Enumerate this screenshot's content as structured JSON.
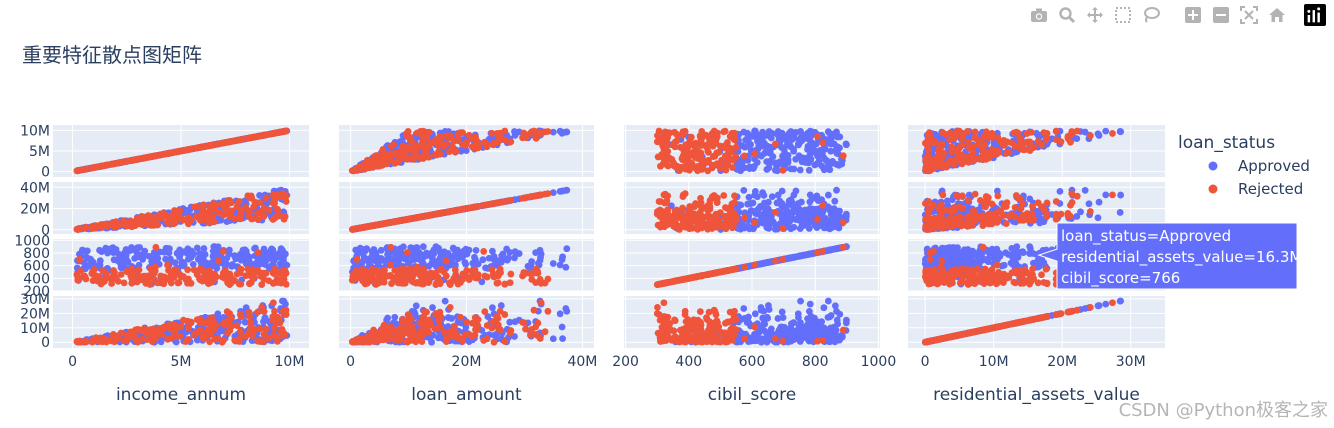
{
  "modebar": {
    "buttons": [
      {
        "name": "camera-icon",
        "title": "Download plot as a png"
      },
      {
        "name": "zoom-icon",
        "title": "Zoom"
      },
      {
        "name": "pan-icon",
        "title": "Pan"
      },
      {
        "name": "box-select-icon",
        "title": "Box Select"
      },
      {
        "name": "lasso-select-icon",
        "title": "Lasso Select"
      },
      {
        "name": "zoom-in-icon",
        "title": "Zoom in"
      },
      {
        "name": "zoom-out-icon",
        "title": "Zoom out"
      },
      {
        "name": "autoscale-icon",
        "title": "Autoscale"
      },
      {
        "name": "reset-axes-icon",
        "title": "Reset axes"
      },
      {
        "name": "plotly-logo-icon",
        "title": "Produced with Plotly"
      }
    ]
  },
  "watermark": "CSDN @Python极客之家",
  "chart_data": {
    "type": "scatter",
    "title": "重要特征散点图矩阵",
    "dimensions": [
      "income_annum",
      "loan_amount",
      "cibil_score",
      "residential_assets_value"
    ],
    "dimension_ticks": {
      "income_annum": {
        "range": [
          -900000,
          10900000
        ],
        "ticks": [
          0,
          5000000,
          10000000
        ],
        "labels": [
          "0",
          "5M",
          "10M"
        ]
      },
      "loan_amount": {
        "range": [
          -2000000,
          42000000
        ],
        "ticks": [
          0,
          20000000,
          40000000
        ],
        "labels": [
          "0",
          "20M",
          "40M"
        ]
      },
      "cibil_score": {
        "range": [
          195,
          1005
        ],
        "ticks": [
          200,
          400,
          600,
          800,
          1000
        ],
        "labels": [
          "200",
          "400",
          "600",
          "800",
          "1000"
        ]
      },
      "residential_assets_value": {
        "range": [
          -2500000,
          35000000
        ],
        "ticks": [
          0,
          10000000,
          20000000,
          30000000
        ],
        "labels": [
          "0",
          "10M",
          "20M",
          "30M"
        ]
      }
    },
    "row_ticks": {
      "income_annum": {
        "range": [
          -1300000,
          11300000
        ],
        "ticks": [
          0,
          5000000,
          10000000
        ],
        "labels": [
          "0",
          "5M",
          "10M"
        ]
      },
      "loan_amount": {
        "range": [
          -4000000,
          45000000
        ],
        "ticks": [
          0,
          20000000,
          40000000
        ],
        "labels": [
          "0",
          "20M",
          "40M"
        ]
      },
      "cibil_score": {
        "range": [
          200,
          1020
        ],
        "ticks": [
          200,
          400,
          600,
          800,
          1000
        ],
        "labels": [
          "200",
          "400",
          "600",
          "800",
          "1000"
        ]
      },
      "residential_assets_value": {
        "range": [
          -4000000,
          32000000
        ],
        "ticks": [
          0,
          10000000,
          20000000,
          30000000
        ],
        "labels": [
          "0",
          "10M",
          "20M",
          "30M"
        ]
      }
    },
    "domains": {
      "income_annum": [
        200000,
        9900000
      ],
      "loan_amount": [
        300000,
        39500000
      ],
      "cibil_score": [
        300,
        900
      ],
      "residential_assets_value": [
        -100000,
        29100000
      ]
    },
    "legend": {
      "title": "loan_status",
      "position": "top-right",
      "entries": [
        {
          "name": "Approved",
          "color": "#636efa"
        },
        {
          "name": "Rejected",
          "color": "#ef553b"
        }
      ]
    },
    "patterns": {
      "approved_cibil_range": [
        550,
        900
      ],
      "rejected_cibil_range": [
        300,
        550
      ]
    },
    "hover": {
      "row": "cibil_score",
      "col": "residential_assets_value",
      "x": 16300000,
      "y": 766,
      "lines": [
        "loan_status=Approved",
        "residential_assets_value=16.3M",
        "cibil_score=766"
      ]
    },
    "colors": {
      "plot_bg": "#e5ecf6",
      "grid": "#ffffff",
      "font": "#2a3f5f"
    }
  }
}
